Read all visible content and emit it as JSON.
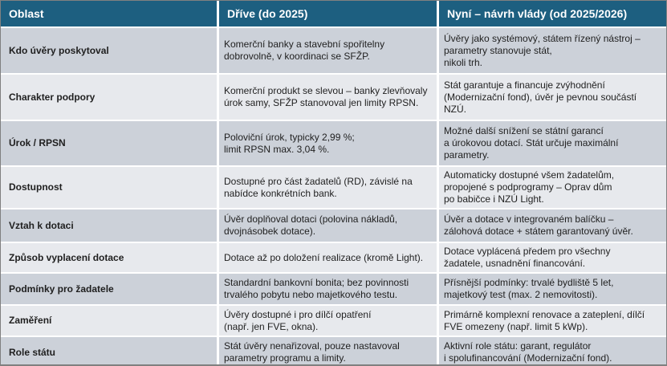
{
  "colors": {
    "header_bg": "#1d5f80",
    "header_text": "#ffffff",
    "row_odd_bg": "#ccd1d9",
    "row_even_bg": "#e7e9ed",
    "body_text": "#1f1f1f",
    "separator": "#ffffff",
    "outer_border": "#808080"
  },
  "table": {
    "headers": [
      "Oblast",
      "Dříve (do 2025)",
      "Nyní – návrh vlády (od 2025/2026)"
    ],
    "rows": [
      {
        "label": "Kdo úvěry poskytoval",
        "before": "Komerční banky a stavební spořitelny\ndobrovolně, v koordinaci se SFŽP.",
        "after": "Úvěry jako systémový, státem řízený nástroj –\nparametry stanovuje stát,\nnikoli trh."
      },
      {
        "label": "Charakter podpory",
        "before": "Komerční produkt se slevou – banky zlevňovaly\núrok samy, SFŽP stanovoval jen limity RPSN.",
        "after": "Stát garantuje a financuje zvýhodnění\n(Modernizační fond), úvěr je pevnou součástí\nNZÚ."
      },
      {
        "label": "Úrok / RPSN",
        "before": "Poloviční úrok, typicky 2,99 %;\nlimit RPSN max. 3,04 %.",
        "after": "Možné další snížení se státní garancí\na úrokovou dotací. Stát určuje maximální\nparametry."
      },
      {
        "label": "Dostupnost",
        "before": "Dostupné pro část žadatelů (RD), závislé na\nnabídce konkrétních bank.",
        "after": "Automaticky dostupné všem žadatelům,\npropojené s podprogramy – Oprav dům\npo babičce i NZÚ Light."
      },
      {
        "label": "Vztah k dotaci",
        "before": "Úvěr doplňoval dotaci (polovina nákladů,\ndvojnásobek dotace).",
        "after": "Úvěr a dotace v integrovaném balíčku –\nzálohová dotace + státem garantovaný úvěr."
      },
      {
        "label": "Způsob vyplacení dotace",
        "before": "Dotace až po doložení realizace (kromě Light).",
        "after": "Dotace vyplácená předem pro všechny\nžadatele, usnadnění financování."
      },
      {
        "label": "Podmínky pro žadatele",
        "before": "Standardní bankovní bonita; bez povinnosti\ntrvalého pobytu nebo majetkového testu.",
        "after": "Přísnější podmínky: trvalé bydliště 5 let,\nmajetkový test (max. 2 nemovitosti)."
      },
      {
        "label": "Zaměření",
        "before": "Úvěry dostupné i pro dílčí opatření\n(např. jen FVE, okna).",
        "after": "Primárně komplexní renovace a zateplení, dílčí\nFVE omezeny (např. limit 5 kWp)."
      },
      {
        "label": "Role státu",
        "before": "Stát úvěry nenařizoval, pouze nastavoval\nparametry programu a limity.",
        "after": "Aktivní role státu: garant, regulátor\ni spolufinancování (Modernizační fond)."
      }
    ]
  }
}
